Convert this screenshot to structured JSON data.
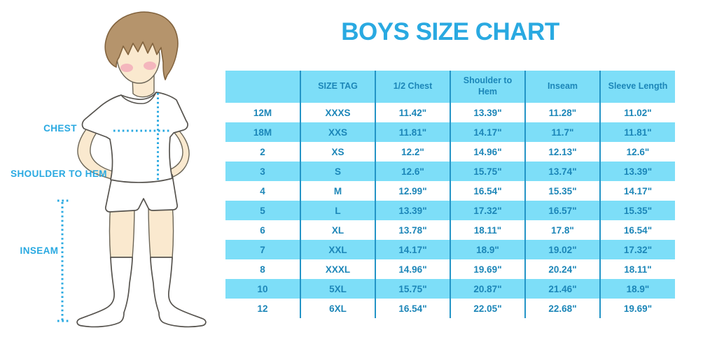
{
  "title": "BOYS SIZE CHART",
  "figure": {
    "description": "illustration of a boy in white t-shirt, shorts and knee socks with measurement guides",
    "labels": {
      "chest": "CHEST",
      "shoulder_to_hem": "SHOULDER TO HEM",
      "inseam": "INSEAM"
    }
  },
  "chart_data": {
    "type": "table",
    "title": "BOYS SIZE CHART",
    "columns": [
      "",
      "SIZE TAG",
      "1/2 Chest",
      "Shoulder to Hem",
      "Inseam",
      "Sleeve Length"
    ],
    "rows": [
      [
        "12M",
        "XXXS",
        "11.42\"",
        "13.39\"",
        "11.28\"",
        "11.02\""
      ],
      [
        "18M",
        "XXS",
        "11.81\"",
        "14.17\"",
        "11.7\"",
        "11.81\""
      ],
      [
        "2",
        "XS",
        "12.2\"",
        "14.96\"",
        "12.13\"",
        "12.6\""
      ],
      [
        "3",
        "S",
        "12.6\"",
        "15.75\"",
        "13.74\"",
        "13.39\""
      ],
      [
        "4",
        "M",
        "12.99\"",
        "16.54\"",
        "15.35\"",
        "14.17\""
      ],
      [
        "5",
        "L",
        "13.39\"",
        "17.32\"",
        "16.57\"",
        "15.35\""
      ],
      [
        "6",
        "XL",
        "13.78\"",
        "18.11\"",
        "17.8\"",
        "16.54\""
      ],
      [
        "7",
        "XXL",
        "14.17\"",
        "18.9\"",
        "19.02\"",
        "17.32\""
      ],
      [
        "8",
        "XXXL",
        "14.96\"",
        "19.69\"",
        "20.24\"",
        "18.11\""
      ],
      [
        "10",
        "5XL",
        "15.75\"",
        "20.87\"",
        "21.46\"",
        "18.9\""
      ],
      [
        "12",
        "6XL",
        "16.54\"",
        "22.05\"",
        "22.68\"",
        "19.69\""
      ]
    ],
    "layout": {
      "striped": true,
      "stripe_color": "#7DDEF8",
      "header_fill": "#7DDEF8",
      "grid": "vertical-only",
      "legend": "none"
    }
  },
  "colors": {
    "accent_blue": "#29A9E1",
    "stripe_blue": "#7DDEF8",
    "line_blue": "#2394C6",
    "table_text_blue": "#1C86B8",
    "hair_brown": "#B5946C",
    "skin_tone": "#FAE9CF"
  }
}
